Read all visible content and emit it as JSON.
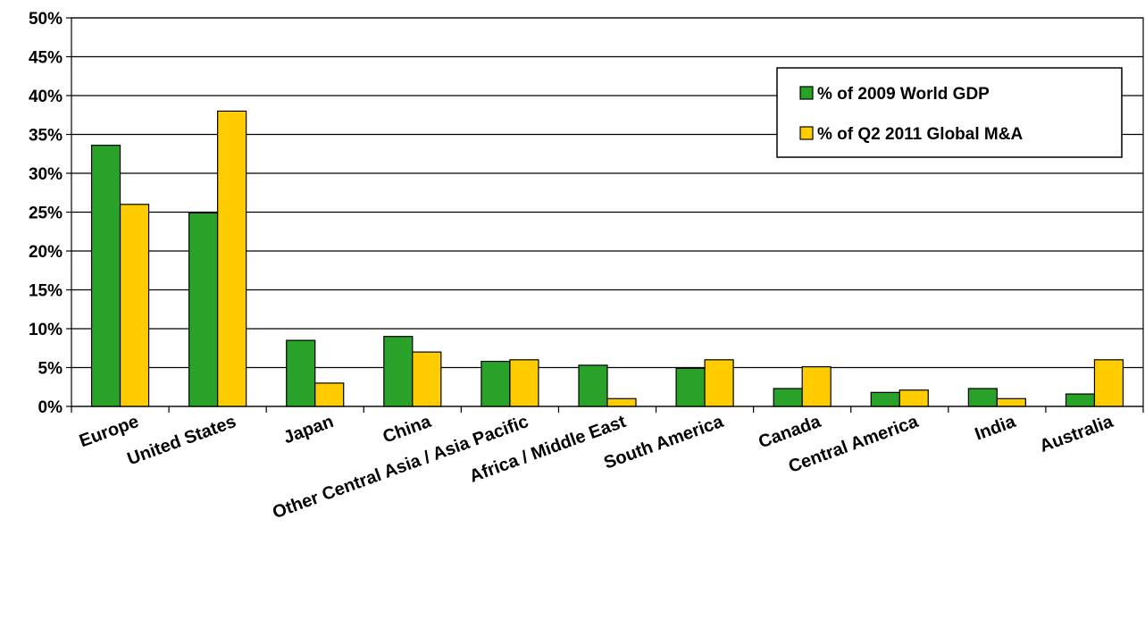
{
  "chart_data": {
    "type": "bar",
    "categories": [
      "Europe",
      "United States",
      "Japan",
      "China",
      "Other Central Asia / Asia Pacific",
      "Africa / Middle East",
      "South America",
      "Canada",
      "Central America",
      "India",
      "Australia"
    ],
    "series": [
      {
        "name": "% of 2009 World GDP",
        "color": "#2aa22a",
        "values": [
          33.6,
          24.9,
          8.5,
          9.0,
          5.8,
          5.3,
          4.9,
          2.3,
          1.8,
          2.3,
          1.6
        ]
      },
      {
        "name": "% of Q2 2011 Global M&A",
        "color": "#ffcc00",
        "values": [
          26.0,
          38.0,
          3.0,
          7.0,
          6.0,
          1.0,
          6.0,
          5.1,
          2.1,
          1.0,
          6.0
        ]
      }
    ],
    "yticks": [
      "0%",
      "5%",
      "10%",
      "15%",
      "20%",
      "25%",
      "30%",
      "35%",
      "40%",
      "45%",
      "50%"
    ],
    "ylim": [
      0,
      50
    ],
    "grid": true,
    "legend_position": "top-right"
  }
}
